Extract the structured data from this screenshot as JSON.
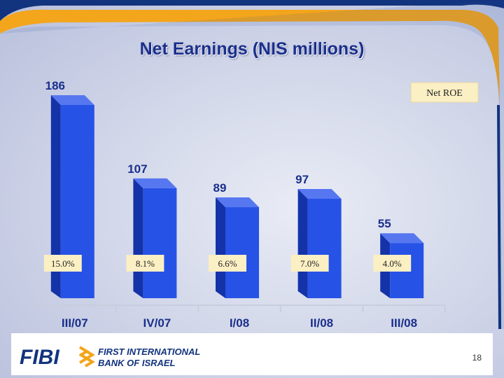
{
  "slide": {
    "title": "Net Earnings (NIS millions)",
    "page_number": "18",
    "logo": {
      "short": "FIBI",
      "line1": "FIRST INTERNATIONAL",
      "line2": "BANK OF ISRAEL"
    }
  },
  "colors": {
    "bar_front": "#2752e6",
    "bar_side": "#1433a8",
    "bar_top": "#5677f0",
    "title": "#1a2f8c",
    "label_box": "#fbefc4",
    "accent_orange": "#f3a51b",
    "frame_navy": "#12337e"
  },
  "chart_data": {
    "type": "bar",
    "title": "Net Earnings (NIS millions)",
    "categories": [
      "III/07",
      "IV/07",
      "I/08",
      "II/08",
      "III/08"
    ],
    "series": [
      {
        "values": [
          186,
          107,
          89,
          97,
          55
        ]
      }
    ],
    "value_labels": [
      "186",
      "107",
      "89",
      "97",
      "55"
    ],
    "roe": {
      "legend": "Net ROE",
      "labels": [
        "15.0%",
        "8.1%",
        "6.6%",
        "7.0%",
        "4.0%"
      ]
    },
    "ylim": [
      0,
      186
    ],
    "grid": false
  }
}
